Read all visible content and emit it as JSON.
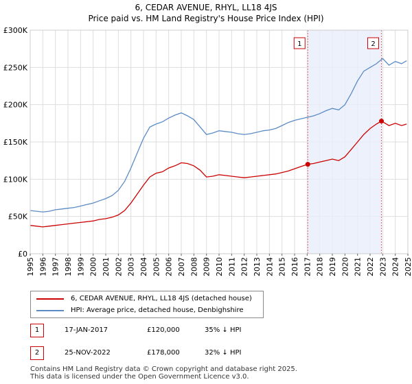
{
  "chart_data": {
    "type": "line",
    "title": "6, CEDAR AVENUE, RHYL, LL18 4JS",
    "subtitle": "Price paid vs. HM Land Registry's House Price Index (HPI)",
    "xlabel": "",
    "ylabel": "",
    "xlim": [
      1995,
      2025
    ],
    "ylim": [
      0,
      300000
    ],
    "yticks": [
      0,
      50000,
      100000,
      150000,
      200000,
      250000,
      300000
    ],
    "ytick_labels": [
      "£0",
      "£50K",
      "£100K",
      "£150K",
      "£200K",
      "£250K",
      "£300K"
    ],
    "xticks": [
      1995,
      1996,
      1997,
      1998,
      1999,
      2000,
      2001,
      2002,
      2003,
      2004,
      2005,
      2006,
      2007,
      2008,
      2009,
      2010,
      2011,
      2012,
      2013,
      2014,
      2015,
      2016,
      2017,
      2018,
      2019,
      2020,
      2021,
      2022,
      2023,
      2024,
      2025
    ],
    "xtick_labels": [
      "1995",
      "1996",
      "1997",
      "1998",
      "1999",
      "2000",
      "2001",
      "2002",
      "2003",
      "2004",
      "2005",
      "2006",
      "2007",
      "2008",
      "2009",
      "2010",
      "2011",
      "2012",
      "2013",
      "2014",
      "2015",
      "2016",
      "2017",
      "2018",
      "2019",
      "2020",
      "2021",
      "2022",
      "2023",
      "2024",
      "2025"
    ],
    "grid": true,
    "shaded_region": [
      2017.05,
      2022.9
    ],
    "series": [
      {
        "name": "6, CEDAR AVENUE, RHYL, LL18 4JS (detached house)",
        "color": "#cc0000",
        "x": [
          1995.0,
          1995.5,
          1996.0,
          1996.5,
          1997.0,
          1997.5,
          1998.0,
          1998.5,
          1999.0,
          1999.5,
          2000.0,
          2000.5,
          2001.0,
          2001.5,
          2002.0,
          2002.5,
          2003.0,
          2003.5,
          2004.0,
          2004.5,
          2005.0,
          2005.5,
          2006.0,
          2006.5,
          2007.0,
          2007.5,
          2008.0,
          2008.5,
          2009.0,
          2009.5,
          2010.0,
          2010.5,
          2011.0,
          2011.5,
          2012.0,
          2012.5,
          2013.0,
          2013.5,
          2014.0,
          2014.5,
          2015.0,
          2015.5,
          2016.0,
          2016.5,
          2017.05,
          2017.5,
          2018.0,
          2018.5,
          2019.0,
          2019.5,
          2020.0,
          2020.5,
          2021.0,
          2021.5,
          2022.0,
          2022.5,
          2022.9,
          2023.5,
          2024.0,
          2024.5,
          2024.9
        ],
        "values": [
          38000,
          37000,
          36000,
          37000,
          38000,
          39000,
          40000,
          41000,
          42000,
          43000,
          44000,
          46000,
          47000,
          49000,
          52000,
          58000,
          68000,
          80000,
          92000,
          103000,
          108000,
          110000,
          115000,
          118000,
          122000,
          121000,
          118000,
          112000,
          103000,
          104000,
          106000,
          105000,
          104000,
          103000,
          102000,
          103000,
          104000,
          105000,
          106000,
          107000,
          109000,
          111000,
          114000,
          117000,
          120000,
          121000,
          123000,
          125000,
          127000,
          125000,
          130000,
          140000,
          150000,
          160000,
          168000,
          174000,
          178000,
          172000,
          175000,
          172000,
          174000
        ]
      },
      {
        "name": "HPI: Average price, detached house, Denbighshire",
        "color": "#5b8bc5",
        "x": [
          1995.0,
          1995.5,
          1996.0,
          1996.5,
          1997.0,
          1997.5,
          1998.0,
          1998.5,
          1999.0,
          1999.5,
          2000.0,
          2000.5,
          2001.0,
          2001.5,
          2002.0,
          2002.5,
          2003.0,
          2003.5,
          2004.0,
          2004.5,
          2005.0,
          2005.5,
          2006.0,
          2006.5,
          2007.0,
          2007.5,
          2008.0,
          2008.5,
          2009.0,
          2009.5,
          2010.0,
          2010.5,
          2011.0,
          2011.5,
          2012.0,
          2012.5,
          2013.0,
          2013.5,
          2014.0,
          2014.5,
          2015.0,
          2015.5,
          2016.0,
          2016.5,
          2017.0,
          2017.5,
          2018.0,
          2018.5,
          2019.0,
          2019.5,
          2020.0,
          2020.5,
          2021.0,
          2021.5,
          2022.0,
          2022.5,
          2023.0,
          2023.5,
          2024.0,
          2024.5,
          2024.9
        ],
        "values": [
          58000,
          57000,
          56000,
          57000,
          59000,
          60000,
          61000,
          62000,
          64000,
          66000,
          68000,
          71000,
          74000,
          78000,
          85000,
          97000,
          115000,
          135000,
          155000,
          170000,
          174000,
          177000,
          182000,
          186000,
          189000,
          185000,
          180000,
          170000,
          160000,
          162000,
          165000,
          164000,
          163000,
          161000,
          160000,
          161000,
          163000,
          165000,
          166000,
          168000,
          172000,
          176000,
          179000,
          181000,
          183000,
          185000,
          188000,
          192000,
          195000,
          193000,
          200000,
          215000,
          232000,
          245000,
          250000,
          255000,
          262000,
          253000,
          258000,
          255000,
          259000
        ]
      }
    ],
    "markers": [
      {
        "label": "1",
        "x": 2017.05,
        "value": 120000
      },
      {
        "label": "2",
        "x": 2022.9,
        "value": 178000
      }
    ]
  },
  "legend": {
    "items": [
      {
        "label": "6, CEDAR AVENUE, RHYL, LL18 4JS (detached house)",
        "color": "#cc0000"
      },
      {
        "label": "HPI: Average price, detached house, Denbighshire",
        "color": "#5b8bc5"
      }
    ]
  },
  "transactions": [
    {
      "id": "1",
      "date": "17-JAN-2017",
      "price": "£120,000",
      "hpi": "35% ↓ HPI"
    },
    {
      "id": "2",
      "date": "25-NOV-2022",
      "price": "£178,000",
      "hpi": "32% ↓ HPI"
    }
  ],
  "footer": {
    "line1": "Contains HM Land Registry data © Crown copyright and database right 2025.",
    "line2": "This data is licensed under the Open Government Licence v3.0."
  }
}
